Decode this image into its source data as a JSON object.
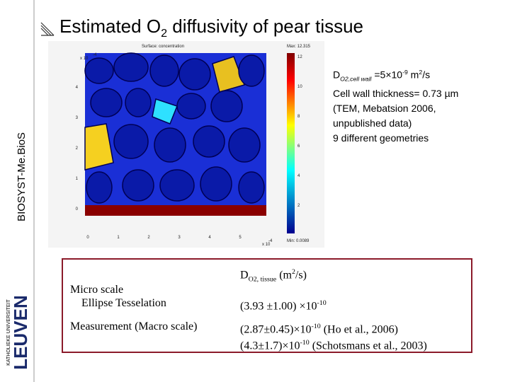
{
  "slide": {
    "title": [
      "Estimated O",
      "2",
      " diffusivity of pear tissue"
    ],
    "side_label": "BIOSYST-Me.BioS",
    "logo": {
      "top": "KATHOLIEKE UNIVERSITEIT",
      "main": "LEUVEN"
    },
    "plot": {
      "title": "Surface: concentration",
      "max": "Max: 12.315",
      "min": "Min: 0.0089",
      "x_scale": "x 10",
      "y_scale": "x 10",
      "scale_exp": "-4",
      "xticks": [
        "0",
        "1",
        "2",
        "3",
        "4",
        "5"
      ],
      "yticks": [
        "0",
        "1",
        "2",
        "3",
        "4"
      ],
      "cticks": [
        "2",
        "4",
        "6",
        "8",
        "10",
        "12"
      ]
    },
    "notes": {
      "wall": [
        "D",
        "O2,cell wall",
        " =5×10",
        "-9",
        " m",
        "2",
        "/s"
      ],
      "lines": [
        "Cell wall thickness= 0.73 µm",
        "(TEM, Mebatsion 2006,",
        "unpublished data)",
        "9 different geometries"
      ]
    },
    "table": {
      "header": [
        "D",
        "O2, tissue",
        " (m",
        "2",
        "/s)"
      ],
      "rows": [
        {
          "label": [
            "Micro scale",
            "Ellipse  Tesselation"
          ],
          "value": [
            [
              "(3.93 ±1.00) ×10",
              "-10",
              ""
            ]
          ]
        },
        {
          "label": [
            "Measurement (Macro scale)"
          ],
          "value": [
            [
              "(2.87±0.45)×10",
              "-10",
              " (Ho et al., 2006)"
            ],
            [
              "(4.3±1.7)×10",
              "-10",
              "  (Schotsmans et al., 2003)"
            ]
          ]
        }
      ]
    }
  }
}
